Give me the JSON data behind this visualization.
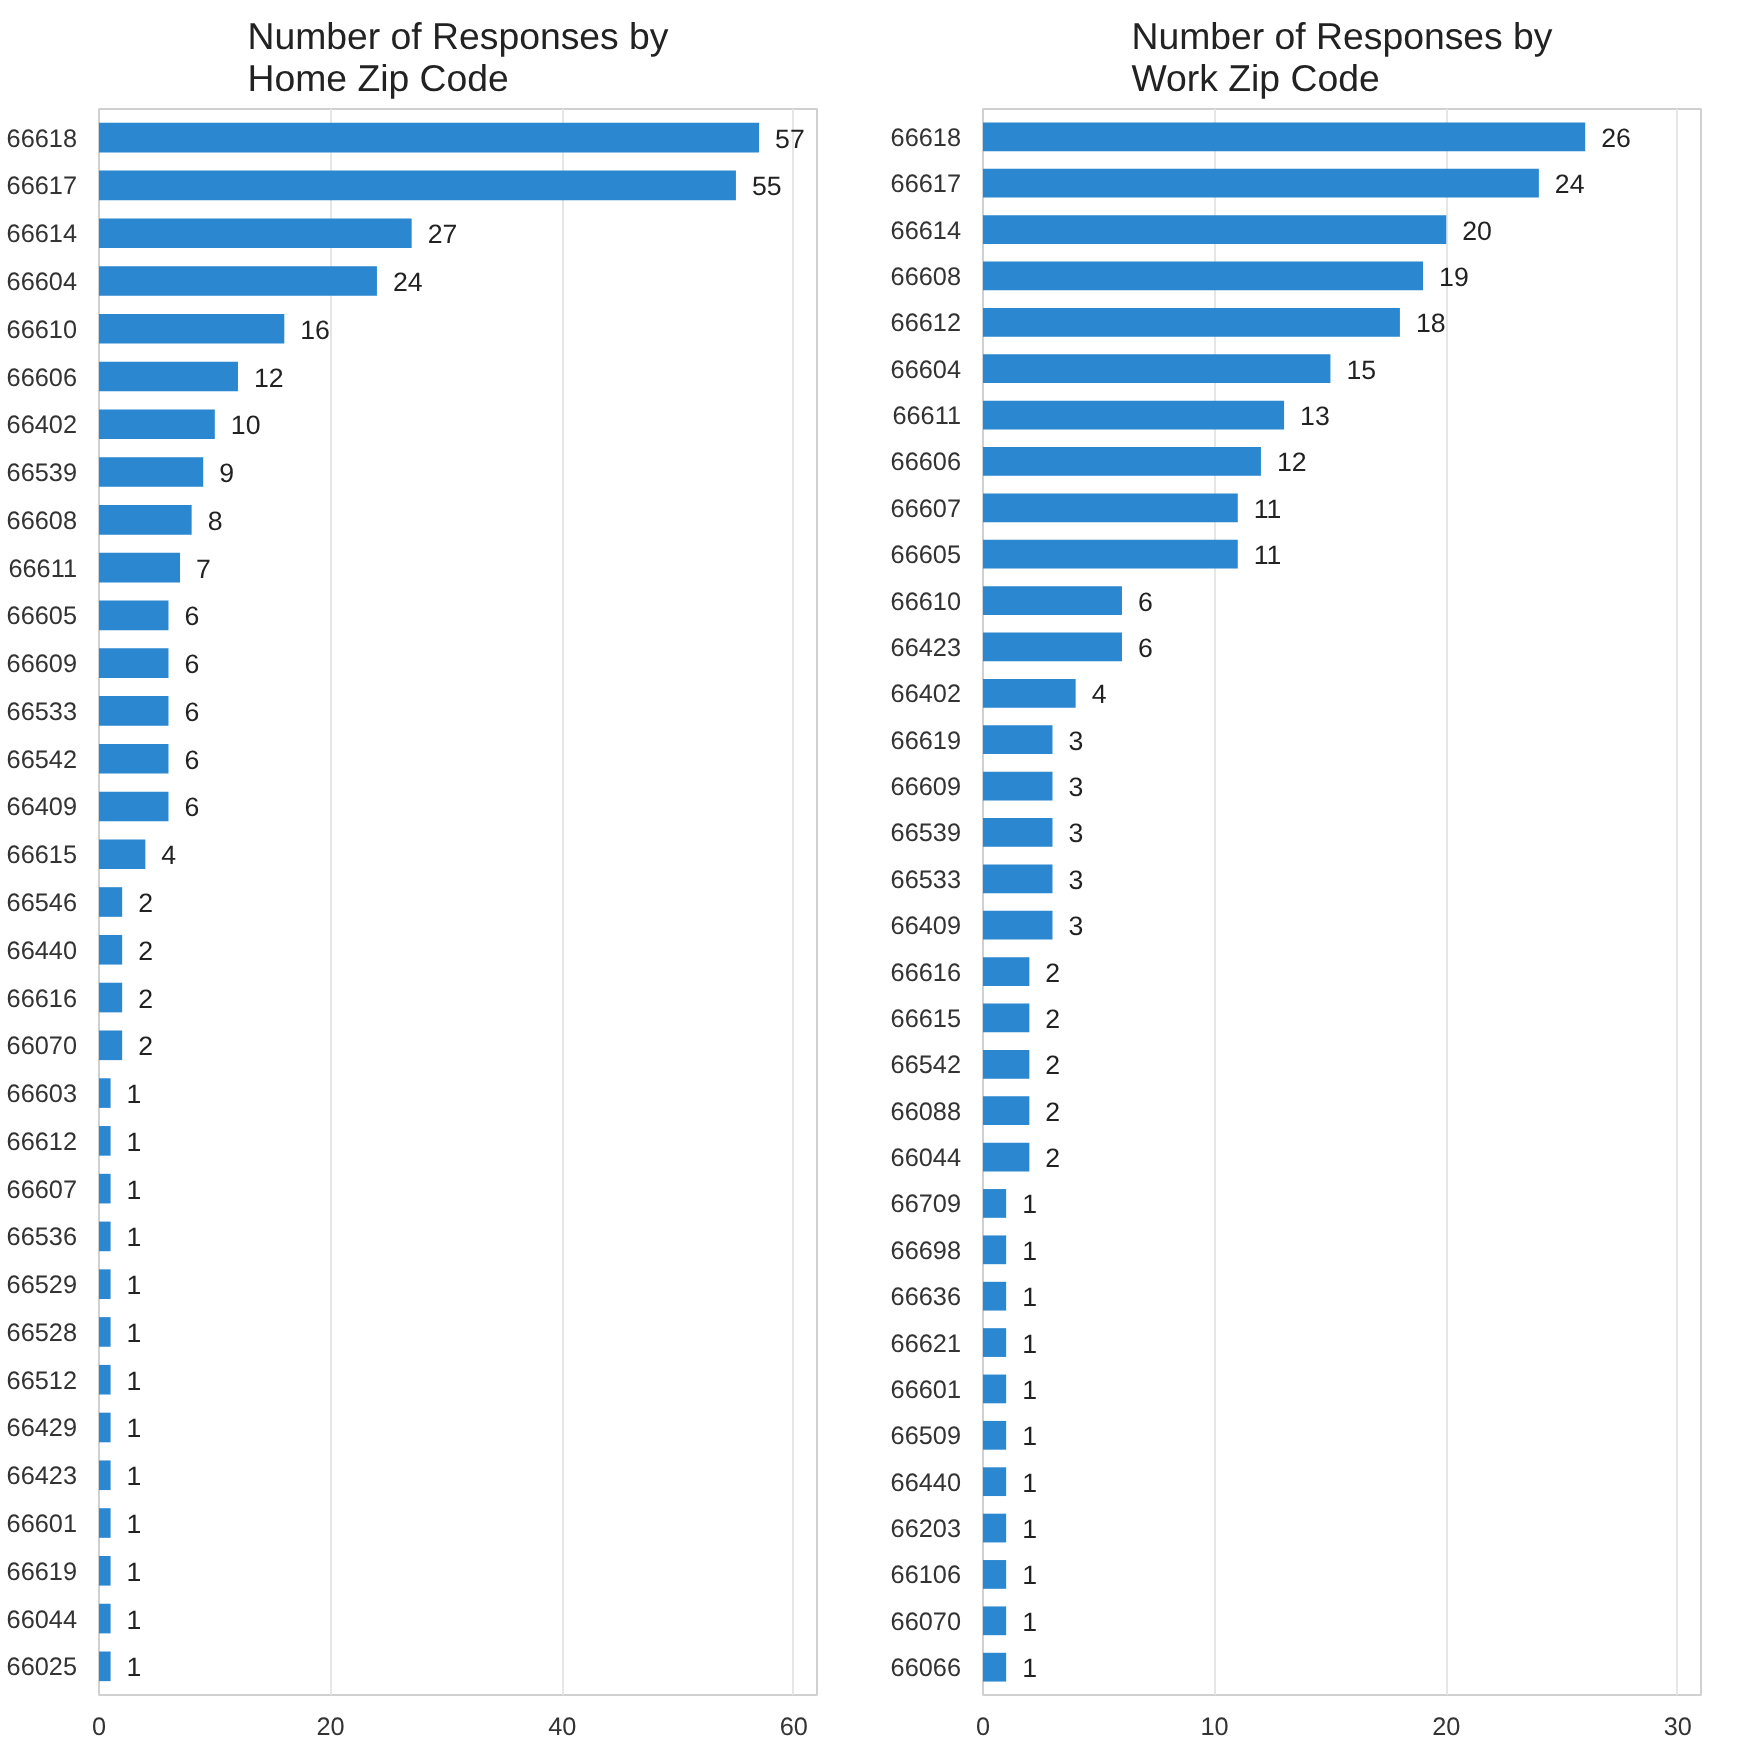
{
  "chart_data": [
    {
      "type": "bar",
      "orientation": "horizontal",
      "title": "Number of Responses by\nHome Zip Code",
      "color": "#2a87d0",
      "grid": "x",
      "data_labels": true,
      "xlim": [
        0,
        62
      ],
      "xticks": [
        0,
        20,
        40,
        60
      ],
      "categories": [
        "66618",
        "66617",
        "66614",
        "66604",
        "66610",
        "66606",
        "66402",
        "66539",
        "66608",
        "66611",
        "66605",
        "66609",
        "66533",
        "66542",
        "66409",
        "66615",
        "66546",
        "66440",
        "66616",
        "66070",
        "66603",
        "66612",
        "66607",
        "66536",
        "66529",
        "66528",
        "66512",
        "66429",
        "66423",
        "66601",
        "66619",
        "66044",
        "66025"
      ],
      "values": [
        57,
        55,
        27,
        24,
        16,
        12,
        10,
        9,
        8,
        7,
        6,
        6,
        6,
        6,
        6,
        4,
        2,
        2,
        2,
        2,
        1,
        1,
        1,
        1,
        1,
        1,
        1,
        1,
        1,
        1,
        1,
        1,
        1
      ]
    },
    {
      "type": "bar",
      "orientation": "horizontal",
      "title": "Number of Responses by\nWork Zip Code",
      "color": "#2a87d0",
      "grid": "x",
      "data_labels": true,
      "xlim": [
        0,
        31
      ],
      "xticks": [
        0,
        10,
        20,
        30
      ],
      "categories": [
        "66618",
        "66617",
        "66614",
        "66608",
        "66612",
        "66604",
        "66611",
        "66606",
        "66607",
        "66605",
        "66610",
        "66423",
        "66402",
        "66619",
        "66609",
        "66539",
        "66533",
        "66409",
        "66616",
        "66615",
        "66542",
        "66088",
        "66044",
        "66709",
        "66698",
        "66636",
        "66621",
        "66601",
        "66509",
        "66440",
        "66203",
        "66106",
        "66070",
        "66066"
      ],
      "values": [
        26,
        24,
        20,
        19,
        18,
        15,
        13,
        12,
        11,
        11,
        6,
        6,
        4,
        3,
        3,
        3,
        3,
        3,
        2,
        2,
        2,
        2,
        2,
        1,
        1,
        1,
        1,
        1,
        1,
        1,
        1,
        1,
        1,
        1
      ]
    }
  ]
}
